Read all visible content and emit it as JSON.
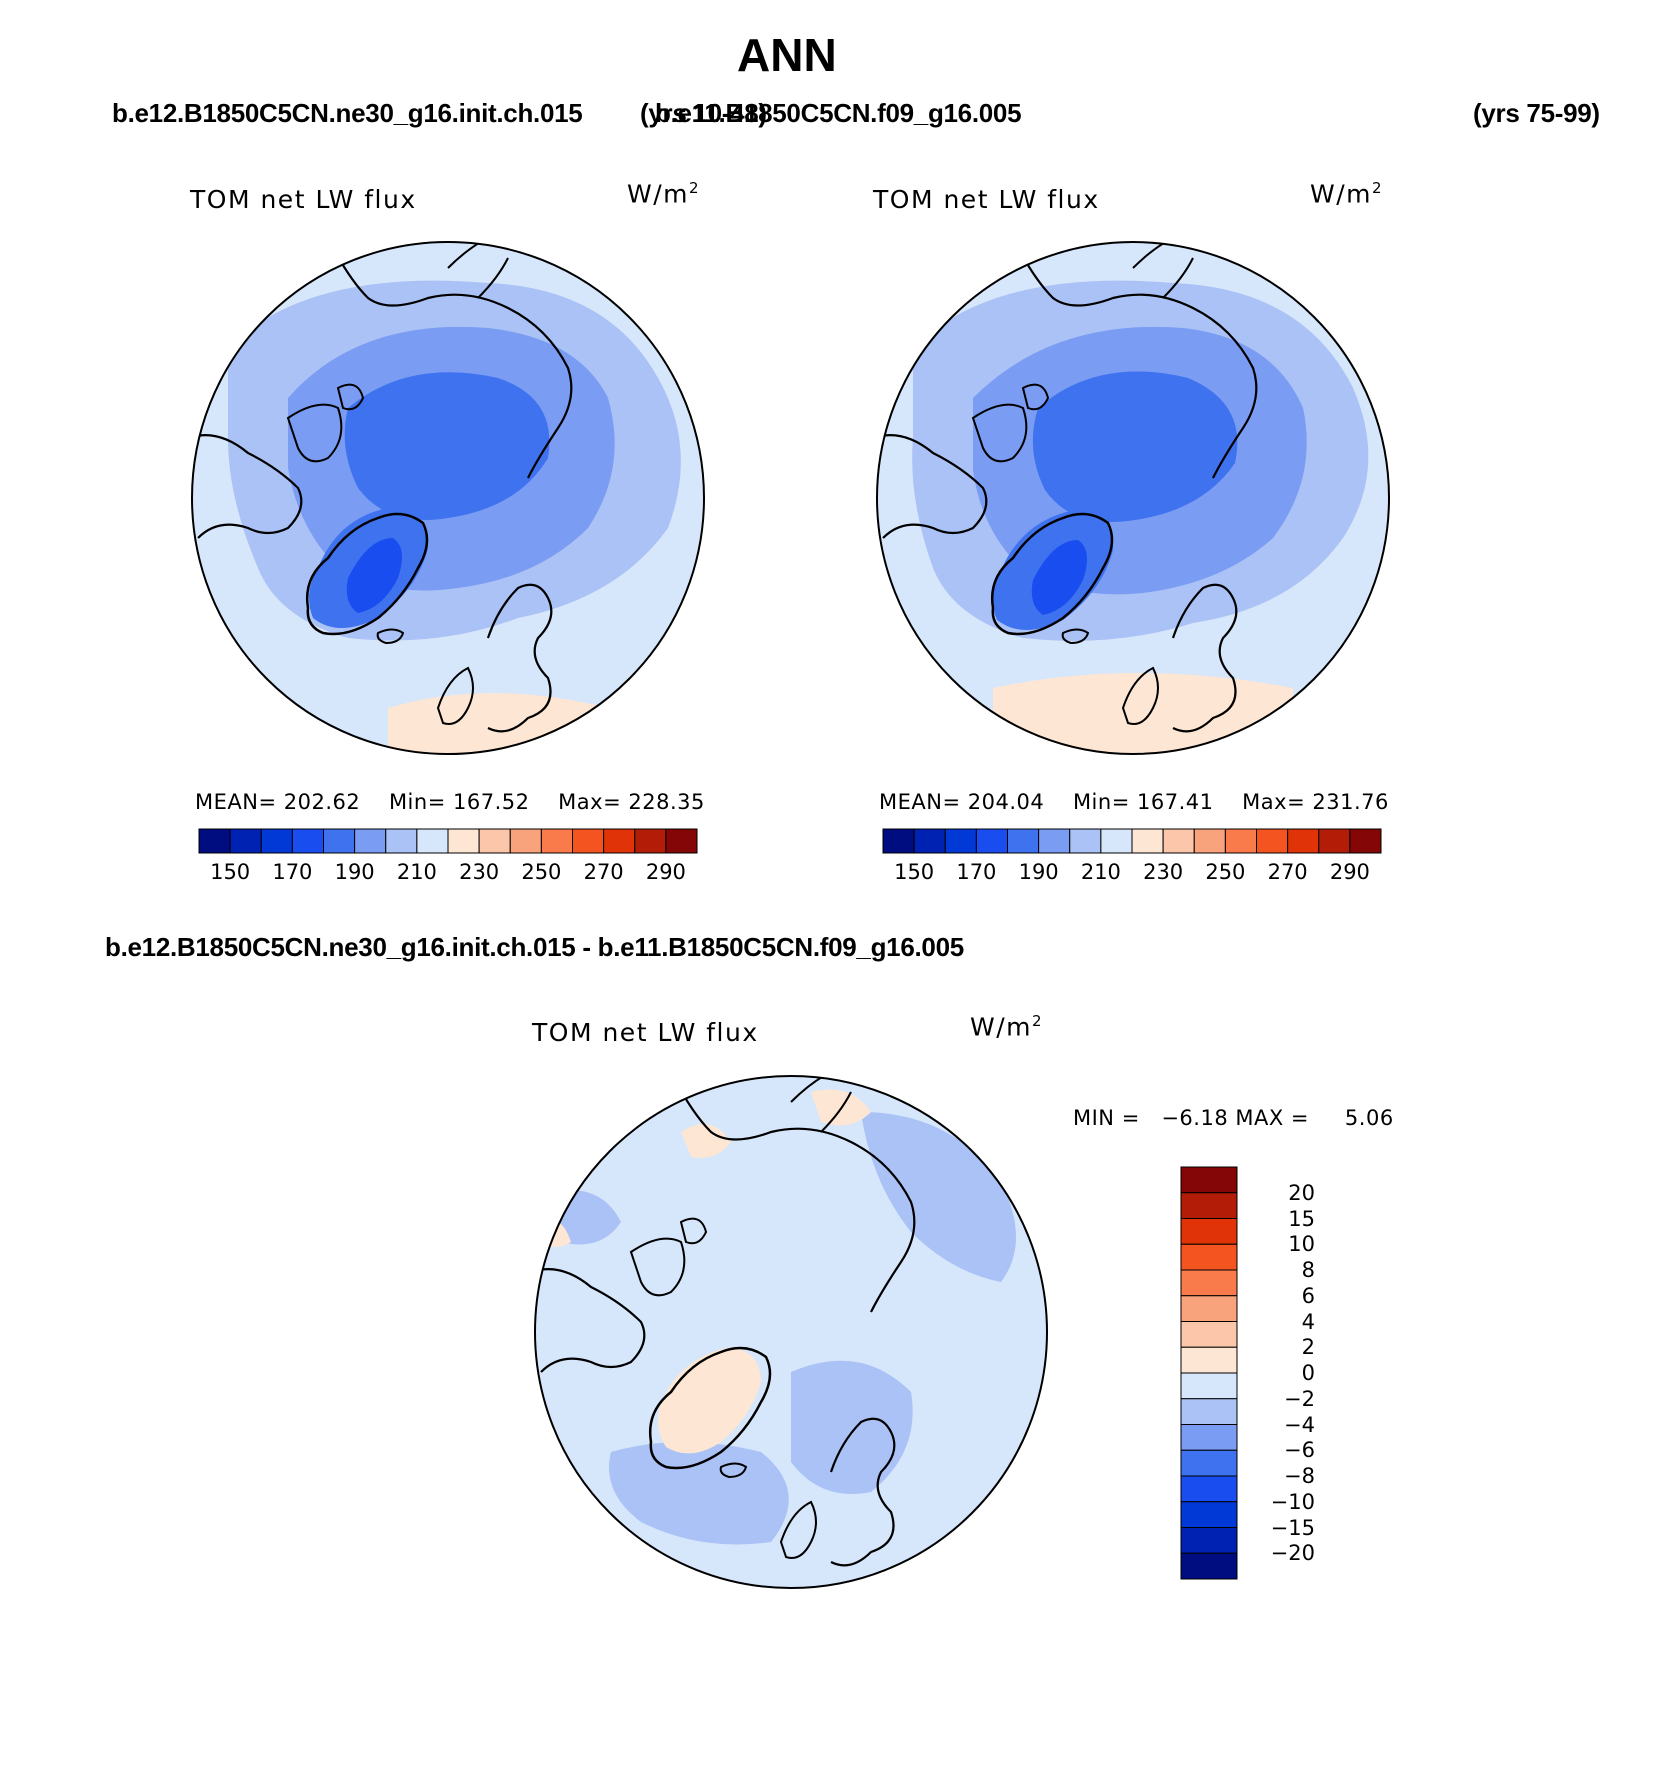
{
  "figure_title": "ANN",
  "top_left": {
    "case_name": "b.e12.B1850C5CN.ne30_g16.init.ch.015",
    "years": "(yrs 10-48)",
    "variable_label": "TOM net LW flux",
    "units_base": "W/m",
    "units_exp": "2",
    "stats": {
      "mean_label": "MEAN=",
      "mean": "202.62",
      "min_label": "Min=",
      "min": "167.52",
      "max_label": "Max=",
      "max": "228.35"
    }
  },
  "top_right": {
    "case_name": "b.e11.B1850C5CN.f09_g16.005",
    "years": "(yrs 75-99)",
    "variable_label": "TOM net LW flux",
    "units_base": "W/m",
    "units_exp": "2",
    "stats": {
      "mean_label": "MEAN=",
      "mean": "204.04",
      "min_label": "Min=",
      "min": "167.41",
      "max_label": "Max=",
      "max": "231.76"
    }
  },
  "main_colorbar": {
    "ticks": [
      "150",
      "170",
      "190",
      "210",
      "230",
      "250",
      "270",
      "290"
    ],
    "colors": [
      "#000d80",
      "#0022b3",
      "#0039d6",
      "#1a4df0",
      "#3f72ee",
      "#7a9cf3",
      "#aac2f5",
      "#d6e6fb",
      "#fde6d3",
      "#fbc6aa",
      "#f9a37c",
      "#f97a4a",
      "#f4541f",
      "#e03308",
      "#b31c06",
      "#850606"
    ]
  },
  "diff": {
    "title": "b.e12.B1850C5CN.ne30_g16.init.ch.015 - b.e11.B1850C5CN.f09_g16.005",
    "variable_label": "TOM net LW flux",
    "units_base": "W/m",
    "units_exp": "2",
    "min_label": "MIN =",
    "min": "−6.18",
    "max_label": "MAX =",
    "max": "5.06",
    "colorbar_ticks": [
      "20",
      "15",
      "10",
      "8",
      "6",
      "4",
      "2",
      "0",
      "−2",
      "−4",
      "−6",
      "−8",
      "−10",
      "−15",
      "−20"
    ],
    "colorbar_colors": [
      "#850606",
      "#b31c06",
      "#e03308",
      "#f4541f",
      "#f97a4a",
      "#f9a37c",
      "#fbc6aa",
      "#fde6d3",
      "#d6e6fb",
      "#aac2f5",
      "#7a9cf3",
      "#3f72ee",
      "#1a4df0",
      "#0039d6",
      "#0022b3",
      "#000d80"
    ]
  },
  "colors": {
    "field_light": "#d6e6fb",
    "field_mid": "#aac2f5",
    "field_midblue": "#7a9cf3",
    "field_blue": "#3f72ee",
    "field_deep": "#1a4df0",
    "warm_light": "#fde6d3",
    "coast": "#000000"
  }
}
